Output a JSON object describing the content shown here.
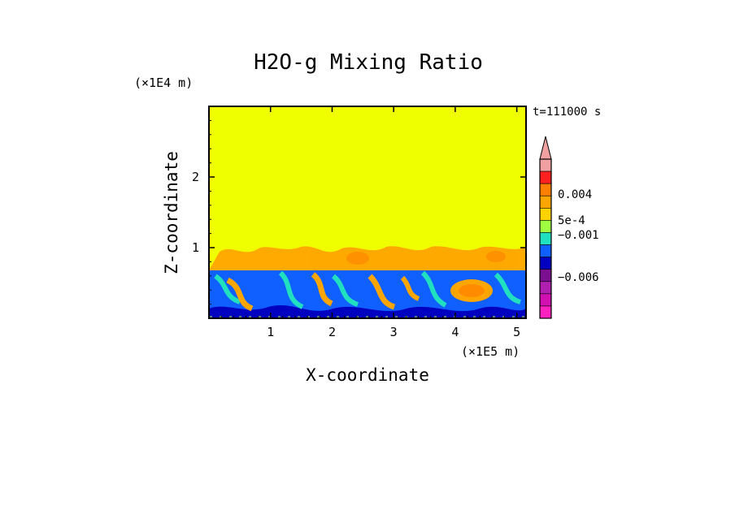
{
  "chart_data": {
    "type": "heatmap",
    "title": "H2O-g Mixing Ratio",
    "xlabel": "X-coordinate",
    "ylabel": "Z-coordinate",
    "x_scale_label": "(×1E5 m)",
    "y_scale_label": "(×1E4 m)",
    "time_label": "t=111000 s",
    "xlim": [
      0,
      5.15
    ],
    "ylim": [
      0,
      3.0
    ],
    "xticks": [
      "1",
      "2",
      "3",
      "4",
      "5"
    ],
    "yticks": [
      "1",
      "2"
    ],
    "colorbar": {
      "labels": [
        "0.004",
        "5e-4",
        "−0.001",
        "−0.006"
      ],
      "colors": [
        "#f0a0a0",
        "#ff2020",
        "#ff7f00",
        "#ffa500",
        "#ffd200",
        "#a0ff40",
        "#20e0c0",
        "#1060ff",
        "#0000c0",
        "#7a1090",
        "#b020b0",
        "#d010b0",
        "#ff20c0"
      ],
      "extend": "max"
    },
    "fields": {
      "upper_layer_value": "yellow (~0)",
      "boundary_layer_top": 0.7,
      "entrainment_zone_top": 1.0
    }
  }
}
